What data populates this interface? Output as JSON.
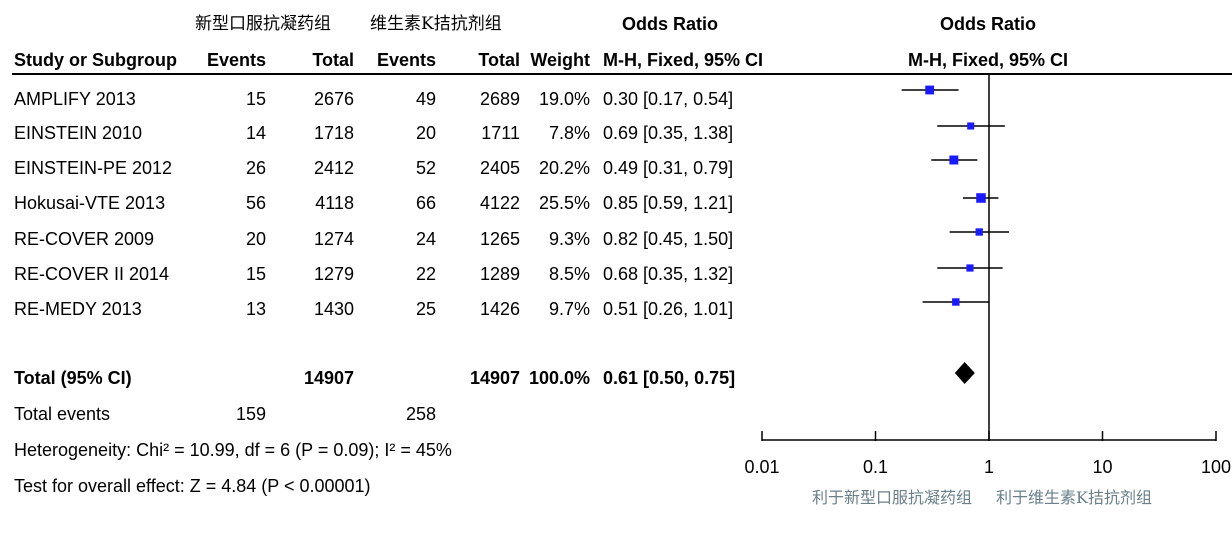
{
  "header": {
    "group1": "新型口服抗凝药组",
    "group2": "维生素K拮抗剂组",
    "odds_ratio_left": "Odds Ratio",
    "odds_ratio_right": "Odds Ratio",
    "study_col": "Study or Subgroup",
    "events1": "Events",
    "total1": "Total",
    "events2": "Events",
    "total2": "Total",
    "weight": "Weight",
    "method_left": "M-H, Fixed, 95% CI",
    "method_right": "M-H, Fixed, 95% CI"
  },
  "studies": [
    {
      "name": "AMPLIFY 2013",
      "events1": "15",
      "total1": "2676",
      "events2": "49",
      "total2": "2689",
      "weight": "19.0%",
      "ci_text": "0.30 [0.17, 0.54]"
    },
    {
      "name": "EINSTEIN 2010",
      "events1": "14",
      "total1": "1718",
      "events2": "20",
      "total2": "1711",
      "weight": "7.8%",
      "ci_text": "0.69 [0.35, 1.38]"
    },
    {
      "name": "EINSTEIN-PE 2012",
      "events1": "26",
      "total1": "2412",
      "events2": "52",
      "total2": "2405",
      "weight": "20.2%",
      "ci_text": "0.49 [0.31, 0.79]"
    },
    {
      "name": "Hokusai-VTE 2013",
      "events1": "56",
      "total1": "4118",
      "events2": "66",
      "total2": "4122",
      "weight": "25.5%",
      "ci_text": "0.85 [0.59, 1.21]"
    },
    {
      "name": "RE-COVER 2009",
      "events1": "20",
      "total1": "1274",
      "events2": "24",
      "total2": "1265",
      "weight": "9.3%",
      "ci_text": "0.82 [0.45, 1.50]"
    },
    {
      "name": "RE-COVER II 2014",
      "events1": "15",
      "total1": "1279",
      "events2": "22",
      "total2": "1289",
      "weight": "8.5%",
      "ci_text": "0.68 [0.35, 1.32]"
    },
    {
      "name": "RE-MEDY 2013",
      "events1": "13",
      "total1": "1430",
      "events2": "25",
      "total2": "1426",
      "weight": "9.7%",
      "ci_text": "0.51 [0.26, 1.01]"
    }
  ],
  "total": {
    "label": "Total (95% CI)",
    "total1": "14907",
    "total2": "14907",
    "weight": "100.0%",
    "ci_text": "0.61 [0.50, 0.75]"
  },
  "total_events": {
    "label": "Total events",
    "events1": "159",
    "events2": "258"
  },
  "heterogeneity": "Heterogeneity: Chi² = 10.99, df = 6 (P = 0.09); I² = 45%",
  "overall_effect": "Test for overall effect: Z = 4.84 (P < 0.00001)",
  "favours": {
    "left": "利于新型口服抗凝药组",
    "right": "利于维生素K拮抗剂组"
  },
  "colors": {
    "marker": "#1a1aff",
    "diamond": "#000000",
    "favours_text": "#6a7f8a"
  },
  "chart_data": {
    "type": "forest",
    "x_scale": "log",
    "xlim": [
      0.01,
      100
    ],
    "xticks": [
      "0.01",
      "0.1",
      "1",
      "10",
      "100"
    ],
    "reference_line": 1,
    "points": [
      {
        "label": "AMPLIFY 2013",
        "or": 0.3,
        "lo": 0.17,
        "hi": 0.54,
        "weight": 19.0
      },
      {
        "label": "EINSTEIN 2010",
        "or": 0.69,
        "lo": 0.35,
        "hi": 1.38,
        "weight": 7.8
      },
      {
        "label": "EINSTEIN-PE 2012",
        "or": 0.49,
        "lo": 0.31,
        "hi": 0.79,
        "weight": 20.2
      },
      {
        "label": "Hokusai-VTE 2013",
        "or": 0.85,
        "lo": 0.59,
        "hi": 1.21,
        "weight": 25.5
      },
      {
        "label": "RE-COVER 2009",
        "or": 0.82,
        "lo": 0.45,
        "hi": 1.5,
        "weight": 9.3
      },
      {
        "label": "RE-COVER II 2014",
        "or": 0.68,
        "lo": 0.35,
        "hi": 1.32,
        "weight": 8.5
      },
      {
        "label": "RE-MEDY 2013",
        "or": 0.51,
        "lo": 0.26,
        "hi": 1.01,
        "weight": 9.7
      }
    ],
    "summary": {
      "label": "Total (95% CI)",
      "or": 0.61,
      "lo": 0.5,
      "hi": 0.75
    }
  }
}
